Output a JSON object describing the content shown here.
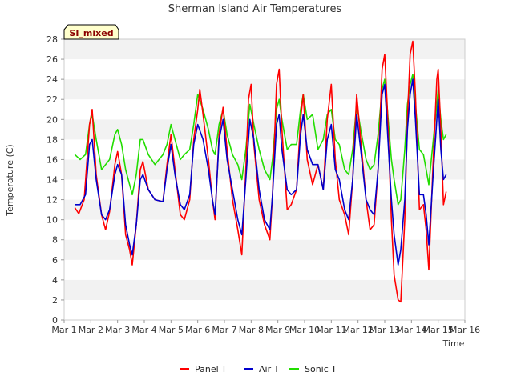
{
  "chart_data": {
    "type": "line",
    "title": "Sherman Island Air Temperatures",
    "xlabel": "Time",
    "ylabel": "Temperature (C)",
    "site_badge": "SI_mixed",
    "ylim": [
      0,
      28
    ],
    "yticks": [
      0,
      2,
      4,
      6,
      8,
      10,
      12,
      14,
      16,
      18,
      20,
      22,
      24,
      26,
      28
    ],
    "xlim": [
      1,
      16
    ],
    "xticks": [
      {
        "v": 1,
        "label": "Mar 1"
      },
      {
        "v": 2,
        "label": "Mar 2"
      },
      {
        "v": 3,
        "label": "Mar 3"
      },
      {
        "v": 4,
        "label": "Mar 4"
      },
      {
        "v": 5,
        "label": "Mar 5"
      },
      {
        "v": 6,
        "label": "Mar 6"
      },
      {
        "v": 7,
        "label": "Mar 7"
      },
      {
        "v": 8,
        "label": "Mar 8"
      },
      {
        "v": 9,
        "label": "Mar 9"
      },
      {
        "v": 10,
        "label": "Mar 10"
      },
      {
        "v": 11,
        "label": "Mar 11"
      },
      {
        "v": 12,
        "label": "Mar 12"
      },
      {
        "v": 13,
        "label": "Mar 13"
      },
      {
        "v": 14,
        "label": "Mar 14"
      },
      {
        "v": 15,
        "label": "Mar 15"
      },
      {
        "v": 16,
        "label": "Mar 16"
      }
    ],
    "grid": true,
    "legend_position": "bottom-center",
    "series": [
      {
        "name": "Panel T",
        "color": "#ff0000",
        "points": [
          [
            1.4,
            11.2
          ],
          [
            1.55,
            10.6
          ],
          [
            1.75,
            12.0
          ],
          [
            1.95,
            19.5
          ],
          [
            2.05,
            21.0
          ],
          [
            2.2,
            14.5
          ],
          [
            2.4,
            10.5
          ],
          [
            2.55,
            9.0
          ],
          [
            2.7,
            10.8
          ],
          [
            2.9,
            15.5
          ],
          [
            3.0,
            16.8
          ],
          [
            3.15,
            14.5
          ],
          [
            3.3,
            8.5
          ],
          [
            3.45,
            7.0
          ],
          [
            3.55,
            5.5
          ],
          [
            3.7,
            9.5
          ],
          [
            3.85,
            15.0
          ],
          [
            3.95,
            15.8
          ],
          [
            4.15,
            13.0
          ],
          [
            4.4,
            12.0
          ],
          [
            4.7,
            11.8
          ],
          [
            4.85,
            15.5
          ],
          [
            5.0,
            18.5
          ],
          [
            5.15,
            15.0
          ],
          [
            5.35,
            10.5
          ],
          [
            5.5,
            10.0
          ],
          [
            5.7,
            12.0
          ],
          [
            5.85,
            18.0
          ],
          [
            6.0,
            21.0
          ],
          [
            6.08,
            23.0
          ],
          [
            6.2,
            20.5
          ],
          [
            6.4,
            16.0
          ],
          [
            6.55,
            12.0
          ],
          [
            6.65,
            10.0
          ],
          [
            6.8,
            18.5
          ],
          [
            6.95,
            21.2
          ],
          [
            7.1,
            17.0
          ],
          [
            7.3,
            12.0
          ],
          [
            7.5,
            9.0
          ],
          [
            7.65,
            6.5
          ],
          [
            7.8,
            15.0
          ],
          [
            7.9,
            22.0
          ],
          [
            8.0,
            23.5
          ],
          [
            8.1,
            17.5
          ],
          [
            8.3,
            12.0
          ],
          [
            8.5,
            9.5
          ],
          [
            8.7,
            8.0
          ],
          [
            8.8,
            12.5
          ],
          [
            8.95,
            23.5
          ],
          [
            9.05,
            25.0
          ],
          [
            9.15,
            19.0
          ],
          [
            9.35,
            11.0
          ],
          [
            9.5,
            11.5
          ],
          [
            9.7,
            13.0
          ],
          [
            9.85,
            20.0
          ],
          [
            9.95,
            22.5
          ],
          [
            10.1,
            16.0
          ],
          [
            10.3,
            13.5
          ],
          [
            10.5,
            15.5
          ],
          [
            10.7,
            13.0
          ],
          [
            10.85,
            20.0
          ],
          [
            11.0,
            23.5
          ],
          [
            11.15,
            16.0
          ],
          [
            11.3,
            12.0
          ],
          [
            11.5,
            10.5
          ],
          [
            11.65,
            8.5
          ],
          [
            11.8,
            14.0
          ],
          [
            11.95,
            22.5
          ],
          [
            12.1,
            18.0
          ],
          [
            12.3,
            12.0
          ],
          [
            12.45,
            9.0
          ],
          [
            12.6,
            9.5
          ],
          [
            12.75,
            15.0
          ],
          [
            12.9,
            25.0
          ],
          [
            13.0,
            26.5
          ],
          [
            13.1,
            21.0
          ],
          [
            13.25,
            10.0
          ],
          [
            13.35,
            4.5
          ],
          [
            13.5,
            2.0
          ],
          [
            13.6,
            1.8
          ],
          [
            13.75,
            10.0
          ],
          [
            13.85,
            20.0
          ],
          [
            13.95,
            26.5
          ],
          [
            14.05,
            27.8
          ],
          [
            14.15,
            22.5
          ],
          [
            14.3,
            11.0
          ],
          [
            14.45,
            11.5
          ],
          [
            14.55,
            9.0
          ],
          [
            14.65,
            5.0
          ],
          [
            14.8,
            15.0
          ],
          [
            14.95,
            24.0
          ],
          [
            15.0,
            25.0
          ],
          [
            15.1,
            19.0
          ],
          [
            15.2,
            11.5
          ],
          [
            15.3,
            12.8
          ]
        ]
      },
      {
        "name": "Air T",
        "color": "#0000cc",
        "points": [
          [
            1.4,
            11.5
          ],
          [
            1.6,
            11.5
          ],
          [
            1.8,
            12.5
          ],
          [
            1.95,
            17.5
          ],
          [
            2.05,
            18.0
          ],
          [
            2.2,
            14.0
          ],
          [
            2.4,
            10.5
          ],
          [
            2.55,
            10.0
          ],
          [
            2.7,
            11.0
          ],
          [
            2.9,
            14.5
          ],
          [
            3.0,
            15.5
          ],
          [
            3.15,
            14.5
          ],
          [
            3.3,
            9.5
          ],
          [
            3.45,
            7.5
          ],
          [
            3.55,
            6.5
          ],
          [
            3.7,
            9.5
          ],
          [
            3.85,
            14.0
          ],
          [
            3.95,
            14.5
          ],
          [
            4.15,
            13.0
          ],
          [
            4.4,
            12.0
          ],
          [
            4.7,
            11.8
          ],
          [
            4.85,
            15.0
          ],
          [
            5.0,
            17.5
          ],
          [
            5.15,
            14.5
          ],
          [
            5.35,
            11.5
          ],
          [
            5.5,
            11.0
          ],
          [
            5.7,
            12.5
          ],
          [
            5.85,
            17.5
          ],
          [
            6.0,
            19.5
          ],
          [
            6.2,
            18.0
          ],
          [
            6.4,
            15.0
          ],
          [
            6.55,
            12.0
          ],
          [
            6.65,
            10.5
          ],
          [
            6.8,
            18.0
          ],
          [
            6.95,
            20.0
          ],
          [
            7.1,
            16.0
          ],
          [
            7.3,
            13.0
          ],
          [
            7.5,
            10.0
          ],
          [
            7.65,
            8.5
          ],
          [
            7.8,
            14.0
          ],
          [
            7.95,
            20.0
          ],
          [
            8.1,
            18.0
          ],
          [
            8.3,
            13.0
          ],
          [
            8.5,
            10.0
          ],
          [
            8.7,
            9.0
          ],
          [
            8.8,
            12.5
          ],
          [
            8.95,
            19.5
          ],
          [
            9.05,
            20.5
          ],
          [
            9.15,
            17.0
          ],
          [
            9.35,
            13.0
          ],
          [
            9.5,
            12.5
          ],
          [
            9.7,
            13.0
          ],
          [
            9.85,
            18.5
          ],
          [
            9.95,
            20.5
          ],
          [
            10.1,
            17.0
          ],
          [
            10.3,
            15.5
          ],
          [
            10.5,
            15.5
          ],
          [
            10.7,
            13.0
          ],
          [
            10.85,
            18.0
          ],
          [
            11.0,
            19.5
          ],
          [
            11.15,
            15.0
          ],
          [
            11.3,
            14.0
          ],
          [
            11.5,
            11.0
          ],
          [
            11.65,
            10.0
          ],
          [
            11.8,
            14.0
          ],
          [
            11.95,
            20.5
          ],
          [
            12.1,
            17.0
          ],
          [
            12.3,
            12.0
          ],
          [
            12.45,
            11.0
          ],
          [
            12.6,
            10.5
          ],
          [
            12.75,
            15.0
          ],
          [
            12.9,
            22.5
          ],
          [
            13.0,
            23.5
          ],
          [
            13.1,
            19.0
          ],
          [
            13.25,
            12.0
          ],
          [
            13.35,
            8.5
          ],
          [
            13.5,
            5.5
          ],
          [
            13.6,
            7.0
          ],
          [
            13.75,
            12.0
          ],
          [
            13.85,
            19.0
          ],
          [
            13.95,
            22.5
          ],
          [
            14.05,
            24.0
          ],
          [
            14.15,
            20.0
          ],
          [
            14.3,
            12.5
          ],
          [
            14.45,
            12.5
          ],
          [
            14.55,
            10.5
          ],
          [
            14.65,
            7.5
          ],
          [
            14.8,
            14.0
          ],
          [
            14.95,
            20.0
          ],
          [
            15.0,
            22.0
          ],
          [
            15.1,
            17.0
          ],
          [
            15.2,
            14.0
          ],
          [
            15.3,
            14.5
          ]
        ]
      },
      {
        "name": "Sonic T",
        "color": "#22dd00",
        "points": [
          [
            1.4,
            16.5
          ],
          [
            1.6,
            16.0
          ],
          [
            1.8,
            16.5
          ],
          [
            1.95,
            19.5
          ],
          [
            2.05,
            20.5
          ],
          [
            2.2,
            18.0
          ],
          [
            2.4,
            15.0
          ],
          [
            2.55,
            15.5
          ],
          [
            2.7,
            16.0
          ],
          [
            2.9,
            18.5
          ],
          [
            3.0,
            19.0
          ],
          [
            3.15,
            17.5
          ],
          [
            3.3,
            15.0
          ],
          [
            3.45,
            13.5
          ],
          [
            3.55,
            12.5
          ],
          [
            3.7,
            14.5
          ],
          [
            3.85,
            18.0
          ],
          [
            3.95,
            18.0
          ],
          [
            4.15,
            16.5
          ],
          [
            4.4,
            15.5
          ],
          [
            4.7,
            16.5
          ],
          [
            4.85,
            17.5
          ],
          [
            5.0,
            19.5
          ],
          [
            5.15,
            18.0
          ],
          [
            5.35,
            16.0
          ],
          [
            5.5,
            16.5
          ],
          [
            5.7,
            17.0
          ],
          [
            5.85,
            19.5
          ],
          [
            6.0,
            22.5
          ],
          [
            6.2,
            21.0
          ],
          [
            6.4,
            19.0
          ],
          [
            6.55,
            17.0
          ],
          [
            6.65,
            16.5
          ],
          [
            6.8,
            19.5
          ],
          [
            6.95,
            21.0
          ],
          [
            7.1,
            18.5
          ],
          [
            7.3,
            16.5
          ],
          [
            7.5,
            15.5
          ],
          [
            7.65,
            14.0
          ],
          [
            7.8,
            17.0
          ],
          [
            7.95,
            21.5
          ],
          [
            8.1,
            19.5
          ],
          [
            8.3,
            17.0
          ],
          [
            8.5,
            15.0
          ],
          [
            8.7,
            14.0
          ],
          [
            8.8,
            16.0
          ],
          [
            8.95,
            21.0
          ],
          [
            9.05,
            22.0
          ],
          [
            9.15,
            20.0
          ],
          [
            9.35,
            17.0
          ],
          [
            9.5,
            17.5
          ],
          [
            9.7,
            17.5
          ],
          [
            9.85,
            21.0
          ],
          [
            9.95,
            22.5
          ],
          [
            10.1,
            20.0
          ],
          [
            10.3,
            20.5
          ],
          [
            10.5,
            17.0
          ],
          [
            10.7,
            18.0
          ],
          [
            10.85,
            20.5
          ],
          [
            11.0,
            21.0
          ],
          [
            11.15,
            18.0
          ],
          [
            11.3,
            17.5
          ],
          [
            11.5,
            15.0
          ],
          [
            11.65,
            14.5
          ],
          [
            11.8,
            17.0
          ],
          [
            11.95,
            21.5
          ],
          [
            12.1,
            19.0
          ],
          [
            12.3,
            16.0
          ],
          [
            12.45,
            15.0
          ],
          [
            12.6,
            15.5
          ],
          [
            12.75,
            18.5
          ],
          [
            12.9,
            23.0
          ],
          [
            13.0,
            24.0
          ],
          [
            13.1,
            21.0
          ],
          [
            13.25,
            16.0
          ],
          [
            13.35,
            14.0
          ],
          [
            13.5,
            11.5
          ],
          [
            13.6,
            12.0
          ],
          [
            13.75,
            17.0
          ],
          [
            13.85,
            21.5
          ],
          [
            13.95,
            23.5
          ],
          [
            14.05,
            24.5
          ],
          [
            14.15,
            21.5
          ],
          [
            14.3,
            17.0
          ],
          [
            14.45,
            16.5
          ],
          [
            14.55,
            15.0
          ],
          [
            14.65,
            13.5
          ],
          [
            14.8,
            17.5
          ],
          [
            14.95,
            21.5
          ],
          [
            15.0,
            23.0
          ],
          [
            15.1,
            20.0
          ],
          [
            15.2,
            18.0
          ],
          [
            15.3,
            18.5
          ]
        ]
      }
    ]
  }
}
